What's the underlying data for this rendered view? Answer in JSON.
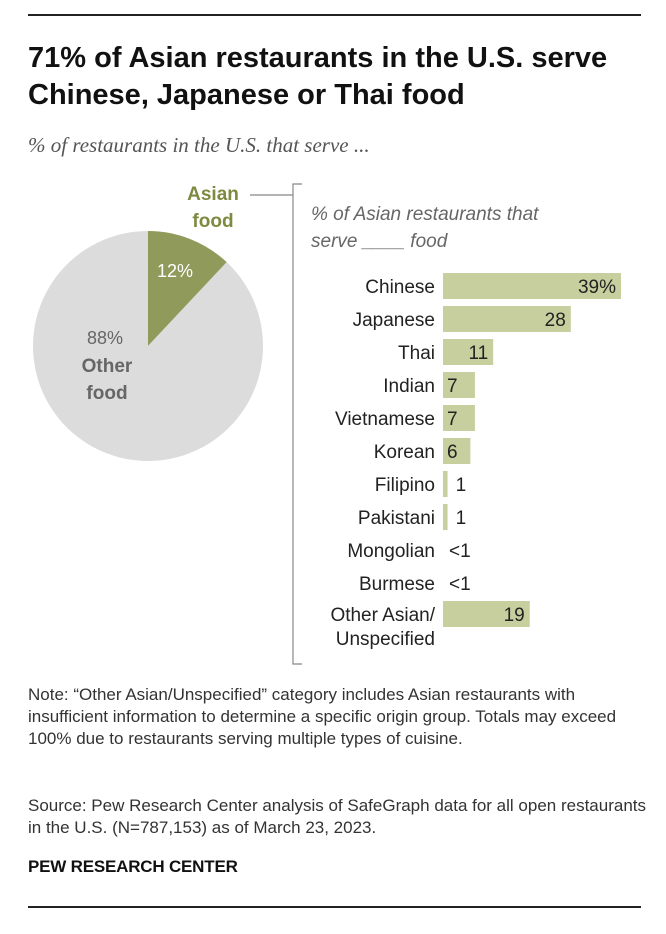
{
  "header": {
    "title": "71% of Asian restaurants in the U.S. serve Chinese, Japanese or Thai food",
    "subtitle": "% of restaurants in the U.S. that serve ..."
  },
  "colors": {
    "asian_pie": "#8f9a5b",
    "other_pie": "#dcdcdc",
    "bar": "#c7cf9e",
    "bracket": "#888888",
    "asian_label": "#7d8a3f"
  },
  "chart_data": [
    {
      "type": "pie",
      "slices": [
        {
          "label_lines": [
            "Asian",
            "food"
          ],
          "value": 12,
          "value_text": "12%"
        },
        {
          "label_lines": [
            "Other",
            "food"
          ],
          "value": 88,
          "value_text": "88%"
        }
      ]
    },
    {
      "type": "bar",
      "orientation": "horizontal",
      "title_lines": [
        "% of Asian restaurants that",
        "serve ____ food"
      ],
      "series": [
        {
          "categories": [
            "Chinese",
            "Japanese",
            "Thai",
            "Indian",
            "Vietnamese",
            "Korean",
            "Filipino",
            "Pakistani",
            "Mongolian",
            "Burmese",
            "Other Asian/ Unspecified"
          ],
          "category_lines": [
            [
              "Chinese"
            ],
            [
              "Japanese"
            ],
            [
              "Thai"
            ],
            [
              "Indian"
            ],
            [
              "Vietnamese"
            ],
            [
              "Korean"
            ],
            [
              "Filipino"
            ],
            [
              "Pakistani"
            ],
            [
              "Mongolian"
            ],
            [
              "Burmese"
            ],
            [
              "Other Asian/",
              "Unspecified"
            ]
          ],
          "values": [
            39,
            28,
            11,
            7,
            7,
            6,
            1,
            1,
            0.4,
            0.4,
            19
          ],
          "value_labels": [
            "39%",
            "28",
            "11",
            "7",
            "7",
            "6",
            "1",
            "1",
            "<1",
            "<1",
            "19"
          ]
        }
      ]
    }
  ],
  "footer": {
    "note": "Note: “Other Asian/Unspecified” category includes Asian restaurants with insufficient information to determine a specific origin group. Totals may exceed 100% due to restaurants serving multiple types of cuisine.",
    "source": "Source: Pew Research Center analysis of SafeGraph data for all open restaurants in the U.S. (N=787,153) as of March 23, 2023.",
    "org": "PEW RESEARCH CENTER"
  }
}
